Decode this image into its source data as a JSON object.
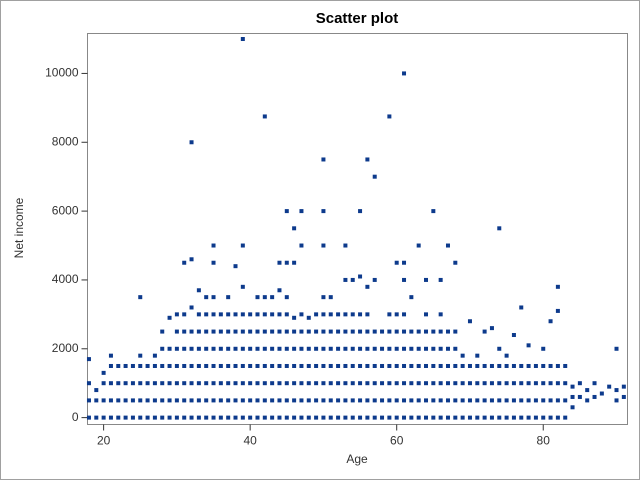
{
  "chart_data": {
    "type": "scatter",
    "title": "Scatter plot",
    "x_label": "Age",
    "y_label": "Net income",
    "color": "#0d3a8c",
    "xlim": [
      17.8,
      91.5
    ],
    "ylim": [
      -200,
      11160
    ],
    "xticks": [
      20,
      40,
      60,
      80
    ],
    "yticks": [
      0,
      2000,
      4000,
      6000,
      8000,
      10000
    ],
    "x": [
      18,
      18,
      18,
      18,
      19,
      19,
      19,
      20,
      20,
      20,
      20,
      21,
      21,
      21,
      21,
      21,
      22,
      22,
      22,
      22,
      23,
      23,
      23,
      23,
      24,
      24,
      24,
      24,
      25,
      25,
      25,
      25,
      25,
      25,
      26,
      26,
      26,
      26,
      27,
      27,
      27,
      27,
      27,
      28,
      28,
      28,
      28,
      28,
      28,
      29,
      29,
      29,
      29,
      29,
      29,
      30,
      30,
      30,
      30,
      30,
      30,
      30,
      31,
      31,
      31,
      31,
      31,
      31,
      31,
      31,
      32,
      32,
      32,
      32,
      32,
      32,
      32,
      32,
      32,
      33,
      33,
      33,
      33,
      33,
      33,
      33,
      33,
      34,
      34,
      34,
      34,
      34,
      34,
      34,
      34,
      35,
      35,
      35,
      35,
      35,
      35,
      35,
      35,
      35,
      35,
      36,
      36,
      36,
      36,
      36,
      36,
      36,
      37,
      37,
      37,
      37,
      37,
      37,
      37,
      37,
      38,
      38,
      38,
      38,
      38,
      38,
      38,
      38,
      39,
      39,
      39,
      39,
      39,
      39,
      39,
      39,
      39,
      39,
      40,
      40,
      40,
      40,
      40,
      40,
      40,
      41,
      41,
      41,
      41,
      41,
      41,
      41,
      41,
      42,
      42,
      42,
      42,
      42,
      42,
      42,
      42,
      42,
      43,
      43,
      43,
      43,
      43,
      43,
      43,
      43,
      44,
      44,
      44,
      44,
      44,
      44,
      44,
      44,
      44,
      45,
      45,
      45,
      45,
      45,
      45,
      45,
      45,
      45,
      45,
      46,
      46,
      46,
      46,
      46,
      46,
      46,
      46,
      46,
      47,
      47,
      47,
      47,
      47,
      47,
      47,
      47,
      47,
      48,
      48,
      48,
      48,
      48,
      48,
      48,
      49,
      49,
      49,
      49,
      49,
      49,
      49,
      50,
      50,
      50,
      50,
      50,
      50,
      50,
      50,
      50,
      50,
      50,
      51,
      51,
      51,
      51,
      51,
      51,
      51,
      51,
      52,
      52,
      52,
      52,
      52,
      52,
      52,
      53,
      53,
      53,
      53,
      53,
      53,
      53,
      53,
      53,
      54,
      54,
      54,
      54,
      54,
      54,
      54,
      54,
      55,
      55,
      55,
      55,
      55,
      55,
      55,
      55,
      55,
      56,
      56,
      56,
      56,
      56,
      56,
      56,
      56,
      56,
      57,
      57,
      57,
      57,
      57,
      57,
      57,
      57,
      58,
      58,
      58,
      58,
      58,
      58,
      59,
      59,
      59,
      59,
      59,
      59,
      59,
      59,
      60,
      60,
      60,
      60,
      60,
      60,
      60,
      60,
      61,
      61,
      61,
      61,
      61,
      61,
      61,
      61,
      61,
      61,
      62,
      62,
      62,
      62,
      62,
      62,
      62,
      63,
      63,
      63,
      63,
      63,
      63,
      63,
      64,
      64,
      64,
      64,
      64,
      64,
      64,
      64,
      65,
      65,
      65,
      65,
      65,
      65,
      65,
      66,
      66,
      66,
      66,
      66,
      66,
      66,
      66,
      67,
      67,
      67,
      67,
      67,
      67,
      67,
      68,
      68,
      68,
      68,
      68,
      68,
      68,
      69,
      69,
      69,
      69,
      69,
      70,
      70,
      70,
      70,
      70,
      71,
      71,
      71,
      71,
      71,
      72,
      72,
      72,
      72,
      72,
      73,
      73,
      73,
      73,
      73,
      74,
      74,
      74,
      74,
      74,
      74,
      75,
      75,
      75,
      75,
      75,
      76,
      76,
      76,
      76,
      76,
      77,
      77,
      77,
      77,
      77,
      78,
      78,
      78,
      78,
      78,
      79,
      79,
      79,
      79,
      80,
      80,
      80,
      80,
      80,
      81,
      81,
      81,
      81,
      81,
      82,
      82,
      82,
      82,
      82,
      82,
      83,
      83,
      83,
      83,
      84,
      84,
      84,
      85,
      85,
      86,
      86,
      87,
      87,
      88,
      89,
      90,
      90,
      90,
      91,
      91
    ],
    "values": [
      0,
      500,
      1000,
      1700,
      0,
      500,
      800,
      0,
      500,
      1000,
      1300,
      0,
      500,
      1000,
      1500,
      1800,
      0,
      500,
      1000,
      1500,
      0,
      500,
      1000,
      1500,
      0,
      500,
      1000,
      1500,
      0,
      500,
      1000,
      1500,
      1800,
      3500,
      0,
      500,
      1000,
      1500,
      0,
      500,
      1000,
      1500,
      1800,
      0,
      500,
      1000,
      1500,
      2000,
      2500,
      0,
      500,
      1000,
      1500,
      2000,
      2900,
      0,
      500,
      1000,
      1500,
      2000,
      2500,
      3000,
      0,
      500,
      1000,
      1500,
      2000,
      2500,
      3000,
      4500,
      0,
      500,
      1000,
      1500,
      2000,
      2500,
      3200,
      4600,
      8000,
      0,
      500,
      1000,
      1500,
      2000,
      2500,
      3000,
      3700,
      0,
      500,
      1000,
      1500,
      2000,
      2500,
      3000,
      3500,
      0,
      500,
      1000,
      1500,
      2000,
      2500,
      3000,
      3500,
      4500,
      5000,
      0,
      500,
      1000,
      1500,
      2000,
      2500,
      3000,
      0,
      500,
      1000,
      1500,
      2000,
      2500,
      3000,
      3500,
      0,
      500,
      1000,
      1500,
      2000,
      2500,
      3000,
      4400,
      0,
      500,
      1000,
      1500,
      2000,
      2500,
      3000,
      3800,
      5000,
      11000,
      0,
      500,
      1000,
      1500,
      2000,
      2500,
      3000,
      0,
      500,
      1000,
      1500,
      2000,
      2500,
      3000,
      3500,
      0,
      500,
      1000,
      1500,
      2000,
      2500,
      3000,
      3500,
      8750,
      0,
      500,
      1000,
      1500,
      2000,
      2500,
      3000,
      3500,
      0,
      500,
      1000,
      1500,
      2000,
      2500,
      3000,
      3700,
      4500,
      0,
      500,
      1000,
      1500,
      2000,
      2500,
      3000,
      3500,
      4500,
      6000,
      0,
      500,
      1000,
      1500,
      2000,
      2500,
      2900,
      4500,
      5500,
      0,
      500,
      1000,
      1500,
      2000,
      2500,
      3000,
      5000,
      6000,
      0,
      500,
      1000,
      1500,
      2000,
      2500,
      2900,
      0,
      500,
      1000,
      1500,
      2000,
      2500,
      3000,
      0,
      500,
      1000,
      1500,
      2000,
      2500,
      3000,
      3500,
      5000,
      6000,
      7500,
      0,
      500,
      1000,
      1500,
      2000,
      2500,
      3000,
      3500,
      0,
      500,
      1000,
      1500,
      2000,
      2500,
      3000,
      0,
      500,
      1000,
      1500,
      2000,
      2500,
      3000,
      4000,
      5000,
      0,
      500,
      1000,
      1500,
      2000,
      2500,
      3000,
      4000,
      0,
      500,
      1000,
      1500,
      2000,
      2500,
      3000,
      4100,
      6000,
      0,
      500,
      1000,
      1500,
      2000,
      2500,
      3000,
      3800,
      7500,
      0,
      500,
      1000,
      1500,
      2000,
      2500,
      4000,
      7000,
      0,
      500,
      1000,
      1500,
      2000,
      2500,
      0,
      500,
      1000,
      1500,
      2000,
      2500,
      3000,
      8750,
      0,
      500,
      1000,
      1500,
      2000,
      2500,
      3000,
      4500,
      0,
      500,
      1000,
      1500,
      2000,
      2500,
      3000,
      4000,
      4500,
      10000,
      0,
      500,
      1000,
      1500,
      2000,
      2500,
      3500,
      0,
      500,
      1000,
      1500,
      2000,
      2500,
      5000,
      0,
      500,
      1000,
      1500,
      2000,
      2500,
      3000,
      4000,
      0,
      500,
      1000,
      1500,
      2000,
      2500,
      6000,
      0,
      500,
      1000,
      1500,
      2000,
      2500,
      3000,
      4000,
      0,
      500,
      1000,
      1500,
      2000,
      2500,
      5000,
      0,
      500,
      1000,
      1500,
      2000,
      2500,
      4500,
      0,
      500,
      1000,
      1500,
      1800,
      0,
      500,
      1000,
      1500,
      2800,
      0,
      500,
      1000,
      1500,
      1800,
      0,
      500,
      1000,
      1500,
      2500,
      0,
      500,
      1000,
      1500,
      2600,
      0,
      500,
      1000,
      1500,
      2000,
      5500,
      0,
      500,
      1000,
      1500,
      1800,
      0,
      500,
      1000,
      1500,
      2400,
      0,
      500,
      1000,
      1500,
      3200,
      0,
      500,
      1000,
      1500,
      2100,
      0,
      500,
      1000,
      1500,
      0,
      500,
      1000,
      1500,
      2000,
      0,
      500,
      1000,
      1500,
      2800,
      0,
      500,
      1000,
      1500,
      3100,
      3800,
      0,
      500,
      1000,
      1500,
      300,
      600,
      900,
      600,
      1000,
      500,
      800,
      600,
      1000,
      700,
      900,
      500,
      800,
      2000,
      600,
      900
    ]
  }
}
